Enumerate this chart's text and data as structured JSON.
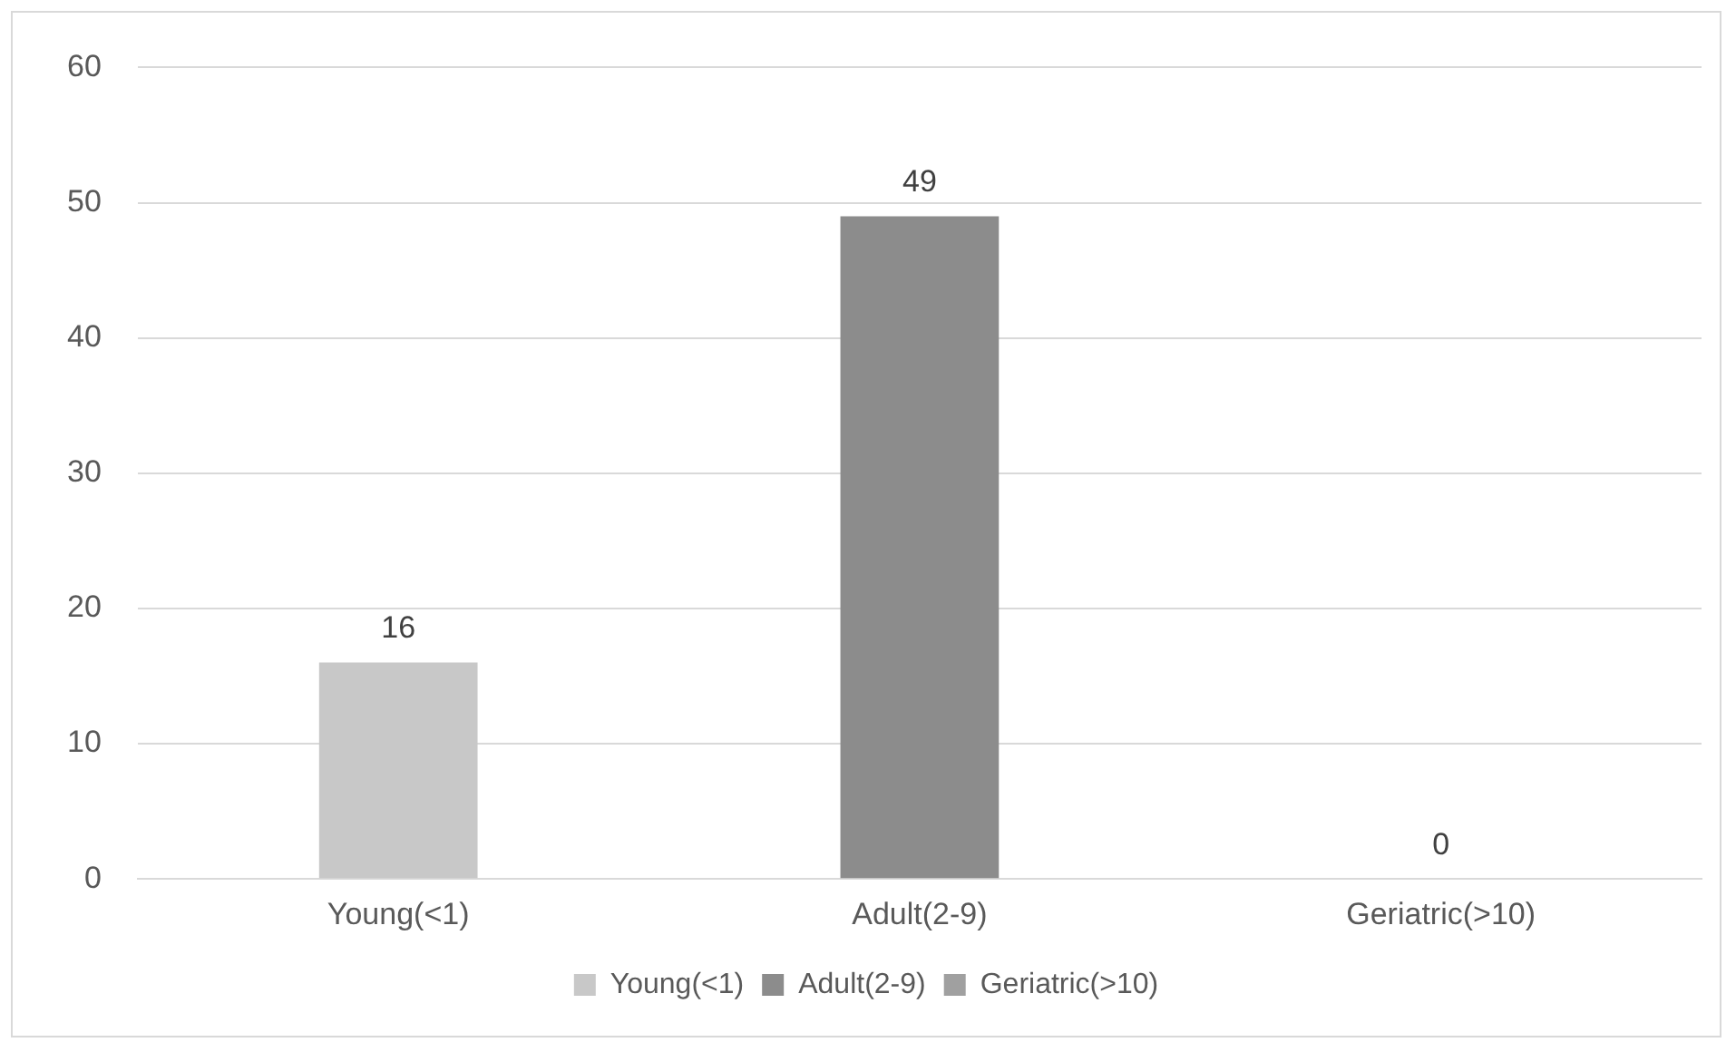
{
  "chart_data": {
    "type": "bar",
    "categories": [
      "Young(<1)",
      "Adult(2-9)",
      "Geriatric(>10)"
    ],
    "series": [
      {
        "name": "Young(<1)",
        "color": "#c8c8c8",
        "values": [
          16,
          null,
          null
        ]
      },
      {
        "name": "Adult(2-9)",
        "color": "#8c8c8c",
        "values": [
          null,
          49,
          null
        ]
      },
      {
        "name": "Geriatric(>10)",
        "color": "#a0a0a0",
        "values": [
          null,
          null,
          0
        ]
      }
    ],
    "ylim": [
      0,
      60
    ],
    "yticks": [
      0,
      10,
      20,
      30,
      40,
      50,
      60
    ],
    "grid": "y",
    "legend": "bottom",
    "data_labels": true
  }
}
